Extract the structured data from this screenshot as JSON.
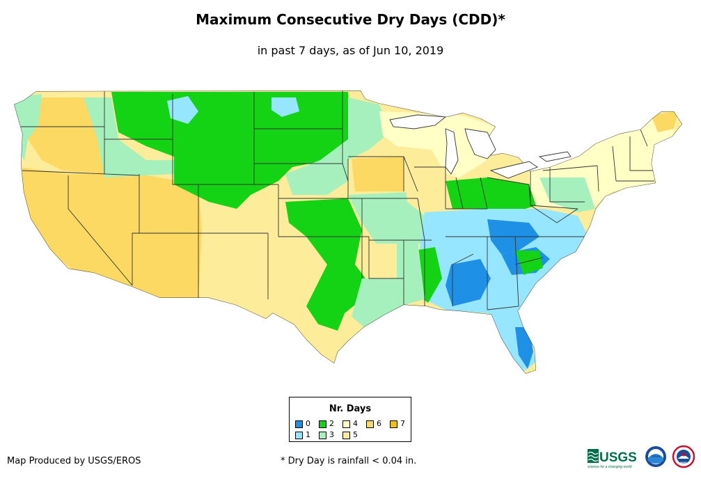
{
  "title": "Maximum Consecutive Dry Days (CDD)*",
  "subtitle": "in past 7 days, as of Jun 10, 2019",
  "legend": {
    "title": "Nr. Days",
    "items": [
      {
        "label": "0",
        "color": "#1e90e6"
      },
      {
        "label": "1",
        "color": "#96e6ff"
      },
      {
        "label": "2",
        "color": "#14d214"
      },
      {
        "label": "3",
        "color": "#a5f0bd"
      },
      {
        "label": "4",
        "color": "#ffffc6"
      },
      {
        "label": "5",
        "color": "#fdec9a"
      },
      {
        "label": "6",
        "color": "#fbd962"
      },
      {
        "label": "7",
        "color": "#f5c000"
      }
    ]
  },
  "credit": "Map Produced by USGS/EROS",
  "footnote": "* Dry Day is rainfall < 0.04 in.",
  "logos": {
    "usgs": "USGS",
    "usgs_tagline": "science for a changing world",
    "noaa": "noaa",
    "nws": "NWS"
  }
}
